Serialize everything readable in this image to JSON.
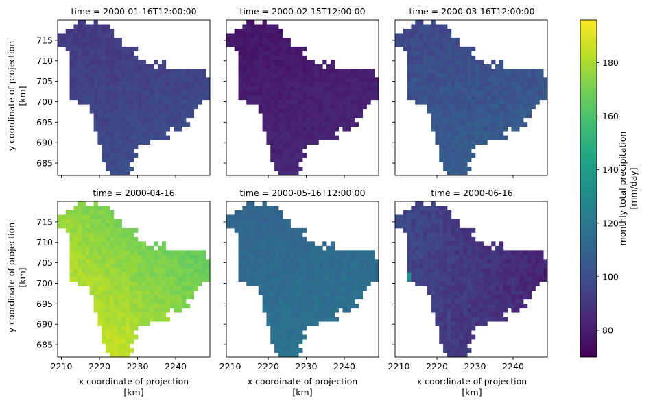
{
  "chart_data": {
    "type": "heatmap",
    "facet_titles": [
      "time = 2000-01-16T12:00:00",
      "time = 2000-02-15T12:00:00",
      "time = 2000-03-16T12:00:00",
      "time = 2000-04-16",
      "time = 2000-05-16T12:00:00",
      "time = 2000-06-16"
    ],
    "xlabel": [
      "x coordinate of projection",
      "[km]"
    ],
    "ylabel": [
      "y coordinate of projection",
      "[km]"
    ],
    "x_ticks": [
      "2210",
      "2220",
      "2230",
      "2240"
    ],
    "y_ticks": [
      "715",
      "710",
      "705",
      "700",
      "695",
      "690",
      "685"
    ],
    "xlim": [
      2209,
      2249
    ],
    "ylim": [
      682,
      720
    ],
    "colorbar": {
      "label": [
        "monthly total precipitation",
        "[mm/day]"
      ],
      "ticks": [
        "80",
        "100",
        "120",
        "140",
        "160",
        "180"
      ],
      "range": [
        70,
        196
      ],
      "colormap": "viridis"
    },
    "panels": [
      {
        "time": "2000-01-16T12:00:00",
        "mean_precip_mm_day": 90,
        "range": [
          84,
          110
        ]
      },
      {
        "time": "2000-02-15T12:00:00",
        "mean_precip_mm_day": 80,
        "range": [
          72,
          92
        ]
      },
      {
        "time": "2000-03-16T12:00:00",
        "mean_precip_mm_day": 95,
        "range": [
          88,
          122
        ]
      },
      {
        "time": "2000-04-16",
        "mean_precip_mm_day": 172,
        "range": [
          150,
          196
        ]
      },
      {
        "time": "2000-05-16T12:00:00",
        "mean_precip_mm_day": 112,
        "range": [
          106,
          125
        ]
      },
      {
        "time": "2000-06-16",
        "mean_precip_mm_day": 88,
        "range": [
          76,
          138
        ]
      }
    ]
  }
}
